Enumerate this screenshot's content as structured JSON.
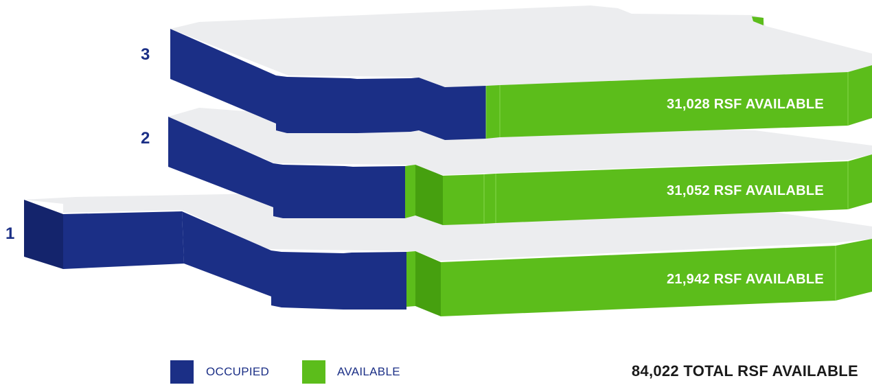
{
  "colors": {
    "occupied": "#1b2f86",
    "occupied_dark": "#14246c",
    "available": "#5cbd1b",
    "available_dark": "#46a00f",
    "floor_top": "#ecedef"
  },
  "floors": [
    {
      "number": "3",
      "available_rsf": "31,028 RSF AVAILABLE"
    },
    {
      "number": "2",
      "available_rsf": "31,052 RSF AVAILABLE"
    },
    {
      "number": "1",
      "available_rsf": "21,942 RSF AVAILABLE"
    }
  ],
  "legend": {
    "occupied_label": "OCCUPIED",
    "available_label": "AVAILABLE"
  },
  "total": "84,022 TOTAL RSF AVAILABLE"
}
